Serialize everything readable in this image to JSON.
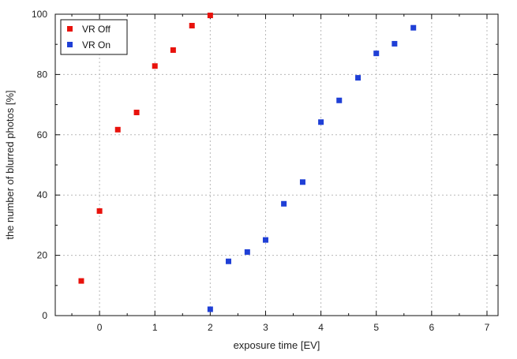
{
  "chart_data": {
    "type": "scatter",
    "xlabel": "exposure time [EV]",
    "ylabel": "the number of blurred photos [%]",
    "xlim": [
      -0.8,
      7.2
    ],
    "ylim": [
      0,
      100
    ],
    "xticks": [
      0,
      1,
      2,
      3,
      4,
      5,
      6,
      7
    ],
    "yticks": [
      0,
      20,
      40,
      60,
      80,
      100
    ],
    "grid": true,
    "legend_position": "top-left",
    "series": [
      {
        "name": "VR Off",
        "color": "#e8120c",
        "points": [
          [
            -0.33,
            11.5
          ],
          [
            0,
            34.7
          ],
          [
            0.33,
            61.7
          ],
          [
            0.67,
            67.4
          ],
          [
            1,
            82.8
          ],
          [
            1.33,
            88.1
          ],
          [
            1.67,
            96.2
          ],
          [
            2,
            99.6
          ]
        ]
      },
      {
        "name": "VR On",
        "color": "#1f3fd6",
        "points": [
          [
            2,
            2.1
          ],
          [
            2.33,
            18.0
          ],
          [
            2.67,
            21.1
          ],
          [
            3,
            25.1
          ],
          [
            3.33,
            37.1
          ],
          [
            3.67,
            44.3
          ],
          [
            4,
            64.2
          ],
          [
            4.33,
            71.4
          ],
          [
            4.67,
            78.9
          ],
          [
            5,
            87.0
          ],
          [
            5.33,
            90.2
          ],
          [
            5.67,
            95.5
          ]
        ]
      }
    ]
  }
}
